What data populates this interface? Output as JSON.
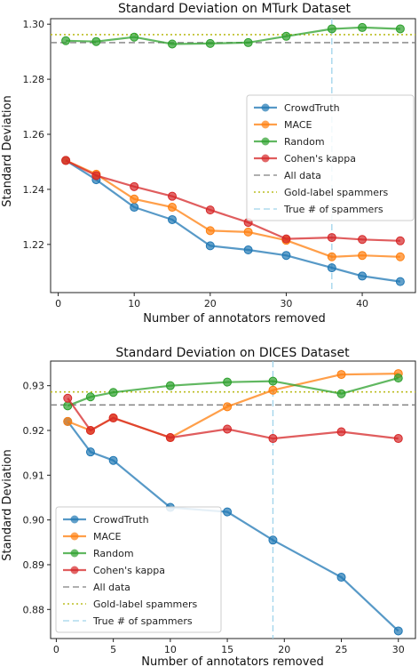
{
  "chart_data": [
    {
      "type": "line",
      "title": "Standard Deviation on MTurk Dataset",
      "xlabel": "Number of annotators removed",
      "ylabel": "Standard Deviation",
      "xlim": [
        -1,
        47
      ],
      "ylim": [
        1.2025,
        1.302
      ],
      "xticks": [
        0,
        10,
        20,
        30,
        40
      ],
      "yticks": [
        1.22,
        1.24,
        1.26,
        1.28,
        1.3
      ],
      "ytick_labels": [
        "1.22",
        "1.24",
        "1.26",
        "1.28",
        "1.30"
      ],
      "x": [
        1,
        5,
        10,
        15,
        20,
        25,
        30,
        36,
        40,
        45
      ],
      "series": [
        {
          "name": "CrowdTruth",
          "color": "#1f77b4",
          "values": [
            1.2505,
            1.2435,
            1.2335,
            1.229,
            1.2195,
            1.218,
            1.216,
            1.2115,
            1.2085,
            1.2065
          ]
        },
        {
          "name": "MACE",
          "color": "#ff7f0e",
          "values": [
            1.2505,
            1.2455,
            1.2365,
            1.2335,
            1.225,
            1.2245,
            1.2215,
            1.2155,
            1.216,
            1.2155
          ]
        },
        {
          "name": "Random",
          "color": "#2ca02c",
          "values": [
            1.294,
            1.2937,
            1.2953,
            1.2928,
            1.293,
            1.2933,
            1.2956,
            1.2983,
            1.2988,
            1.2983
          ]
        },
        {
          "name": "Cohen's kappa",
          "color": "#d62728",
          "values": [
            1.2505,
            1.245,
            1.241,
            1.2375,
            1.2325,
            1.228,
            1.222,
            1.2225,
            1.2218,
            1.2213
          ]
        }
      ],
      "reference_lines": [
        {
          "name": "All data",
          "orientation": "horizontal",
          "value": 1.2933,
          "style": "dashed",
          "color": "#7f7f7f"
        },
        {
          "name": "Gold-label spammers",
          "orientation": "horizontal",
          "value": 1.2962,
          "style": "dotted",
          "color": "#bcbd22"
        },
        {
          "name": "True # of spammers",
          "orientation": "vertical",
          "value": 36,
          "style": "dashed",
          "color": "#9fd3ea"
        }
      ],
      "legend_position": "center-right",
      "grid": false
    },
    {
      "type": "line",
      "title": "Standard Deviation on DICES Dataset",
      "xlabel": "Number of annotators removed",
      "ylabel": "Standard Deviation",
      "xlim": [
        -0.5,
        31.5
      ],
      "ylim": [
        0.8735,
        0.9355
      ],
      "xticks": [
        0,
        5,
        10,
        15,
        20,
        25,
        30
      ],
      "yticks": [
        0.88,
        0.89,
        0.9,
        0.91,
        0.92,
        0.93
      ],
      "ytick_labels": [
        "0.88",
        "0.89",
        "0.90",
        "0.91",
        "0.92",
        "0.93"
      ],
      "x": [
        1,
        3,
        5,
        10,
        15,
        19,
        25,
        30
      ],
      "series": [
        {
          "name": "CrowdTruth",
          "color": "#1f77b4",
          "values": [
            0.922,
            0.9152,
            0.9133,
            0.9028,
            0.9018,
            0.8955,
            0.8872,
            0.8752
          ]
        },
        {
          "name": "MACE",
          "color": "#ff7f0e",
          "values": [
            0.922,
            0.92,
            0.9228,
            0.9184,
            0.9253,
            0.929,
            0.9325,
            0.9327
          ]
        },
        {
          "name": "Random",
          "color": "#2ca02c",
          "values": [
            0.9255,
            0.9275,
            0.9285,
            0.93,
            0.9308,
            0.931,
            0.9282,
            0.9317
          ]
        },
        {
          "name": "Cohen's kappa",
          "color": "#d62728",
          "values": [
            0.9272,
            0.92,
            0.9228,
            0.9184,
            0.9203,
            0.9182,
            0.9197,
            0.9182
          ]
        }
      ],
      "reference_lines": [
        {
          "name": "All data",
          "orientation": "horizontal",
          "value": 0.9257,
          "style": "dashed",
          "color": "#7f7f7f"
        },
        {
          "name": "Gold-label spammers",
          "orientation": "horizontal",
          "value": 0.9286,
          "style": "dotted",
          "color": "#bcbd22"
        },
        {
          "name": "True # of spammers",
          "orientation": "vertical",
          "value": 19,
          "style": "dashed",
          "color": "#9fd3ea"
        }
      ],
      "legend_position": "lower-left",
      "grid": false
    }
  ]
}
